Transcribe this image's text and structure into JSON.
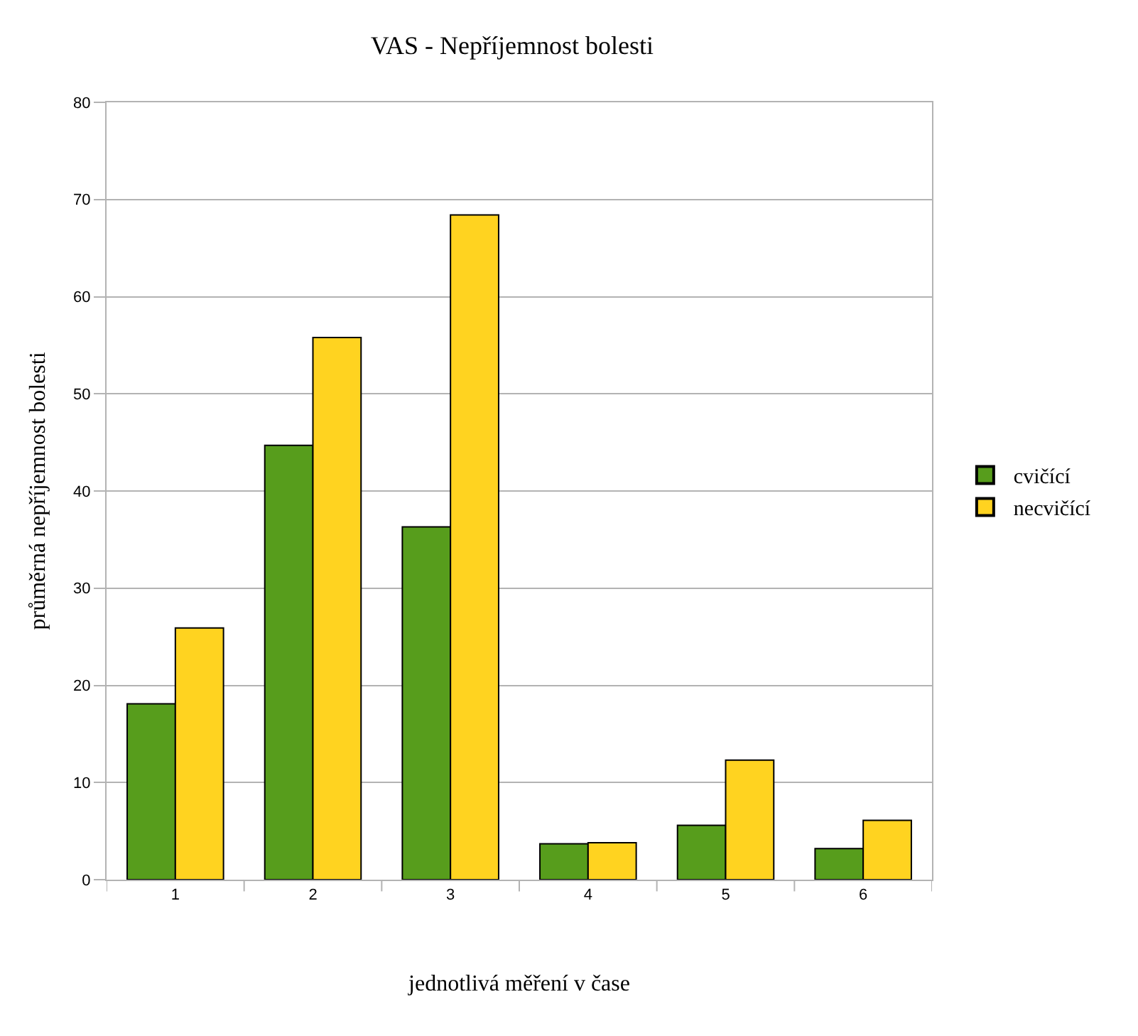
{
  "chart_data": {
    "type": "bar",
    "title": "VAS - Nepříjemnost bolesti",
    "xlabel": "jednotlivá měření v čase",
    "ylabel": "průměrná nepříjemnost bolesti",
    "categories": [
      "1",
      "2",
      "3",
      "4",
      "5",
      "6"
    ],
    "series": [
      {
        "name": "cvičící",
        "color": "#579d1c",
        "values": [
          18.1,
          44.7,
          36.3,
          3.7,
          5.6,
          3.2
        ]
      },
      {
        "name": "necvičící",
        "color": "#ffd320",
        "values": [
          25.9,
          55.8,
          68.4,
          3.8,
          12.3,
          6.1
        ]
      }
    ],
    "ylim": [
      0,
      80
    ],
    "yticks": [
      0,
      10,
      20,
      30,
      40,
      50,
      60,
      70,
      80
    ],
    "grid": "y",
    "legend": "right"
  }
}
